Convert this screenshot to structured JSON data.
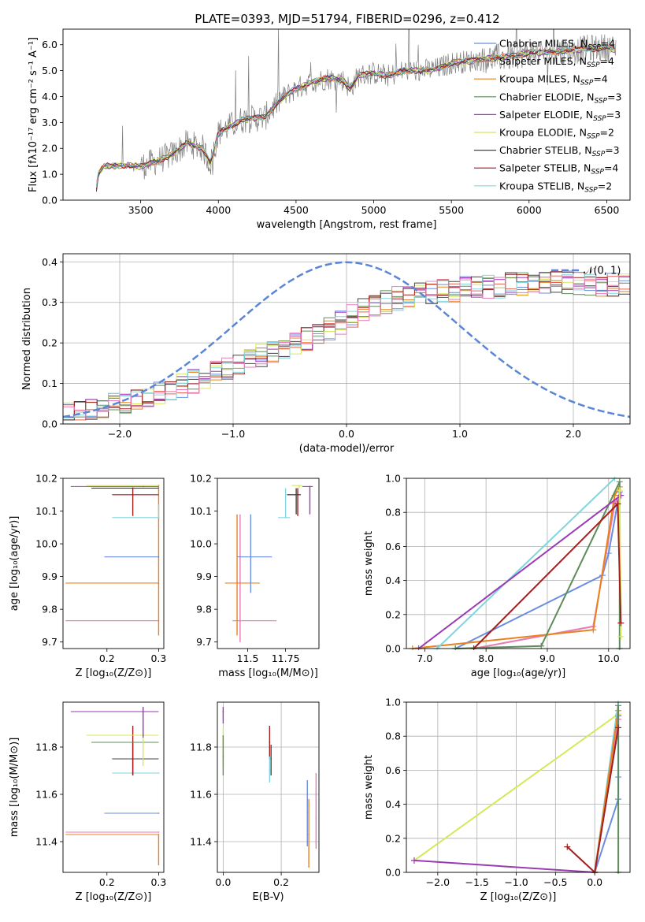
{
  "figure_title": "PLATE=0393, MJD=51794, FIBERID=0296, z=0.412",
  "colors": {
    "chabrier_miles": "#6a8ee0",
    "salpeter_miles": "#e8604c",
    "kroupa_miles": "#e8821e",
    "chabrier_elodie": "#5e8c5a",
    "salpeter_elodie": "#9a3ab4",
    "kroupa_elodie": "#d6e85a",
    "chabrier_stelib": "#444444",
    "salpeter_stelib": "#a01e1e",
    "kroupa_stelib": "#7ed6de",
    "pink": "#e87ab8",
    "observed_spectrum": "#7f7f7f",
    "normal_curve": "#5b86d8",
    "grid": "#b0b0b0"
  },
  "chart_data": [
    {
      "id": "spectrum",
      "type": "line",
      "title": "PLATE=0393, MJD=51794, FIBERID=0296, z=0.412",
      "xlabel": "wavelength [Angstrom, rest frame]",
      "ylabel": "Flux [fλ10⁻¹⁷ erg cm⁻² s⁻¹ A⁻¹]",
      "xlim": [
        3000,
        6650
      ],
      "ylim": [
        0,
        6.6
      ],
      "xticks": [
        3500,
        4000,
        4500,
        5000,
        5500,
        6000,
        6500
      ],
      "yticks": [
        0,
        1,
        2,
        3,
        4,
        5,
        6
      ],
      "grid": false,
      "legend_position": "top-right",
      "legend": [
        {
          "name": "Chabrier MILES, N",
          "sub": "SSP",
          "tail": "=4",
          "color": "#6a8ee0"
        },
        {
          "name": "Salpeter MILES, N",
          "sub": "SSP",
          "tail": "=4",
          "color": "#e8604c"
        },
        {
          "name": "Kroupa MILES, N",
          "sub": "SSP",
          "tail": "=4",
          "color": "#e8821e"
        },
        {
          "name": "Chabrier ELODIE, N",
          "sub": "SSP",
          "tail": "=3",
          "color": "#5e8c5a"
        },
        {
          "name": "Salpeter ELODIE, N",
          "sub": "SSP",
          "tail": "=3",
          "color": "#9a3ab4"
        },
        {
          "name": "Kroupa ELODIE, N",
          "sub": "SSP",
          "tail": "=2",
          "color": "#d6e85a"
        },
        {
          "name": "Chabrier STELIB, N",
          "sub": "SSP",
          "tail": "=3",
          "color": "#444444"
        },
        {
          "name": "Salpeter STELIB, N",
          "sub": "SSP",
          "tail": "=4",
          "color": "#a01e1e"
        },
        {
          "name": "Kroupa STELIB, N",
          "sub": "SSP",
          "tail": "=2",
          "color": "#7ed6de"
        }
      ],
      "continuum_points": [
        [
          3210,
          0.0
        ],
        [
          3220,
          0.9
        ],
        [
          3260,
          1.3
        ],
        [
          3400,
          1.35
        ],
        [
          3500,
          1.3
        ],
        [
          3600,
          1.5
        ],
        [
          3700,
          1.75
        ],
        [
          3800,
          2.2
        ],
        [
          3900,
          2.0
        ],
        [
          3950,
          1.4
        ],
        [
          4000,
          2.6
        ],
        [
          4150,
          3.1
        ],
        [
          4300,
          3.2
        ],
        [
          4400,
          3.9
        ],
        [
          4500,
          4.3
        ],
        [
          4600,
          4.55
        ],
        [
          4700,
          4.7
        ],
        [
          4800,
          4.65
        ],
        [
          4850,
          4.3
        ],
        [
          4900,
          4.8
        ],
        [
          5000,
          4.9
        ],
        [
          5100,
          4.8
        ],
        [
          5200,
          5.0
        ],
        [
          5300,
          5.0
        ],
        [
          5400,
          5.05
        ],
        [
          5500,
          5.3
        ],
        [
          5600,
          5.35
        ],
        [
          5700,
          5.45
        ],
        [
          5800,
          5.5
        ],
        [
          5900,
          5.55
        ],
        [
          6000,
          5.7
        ],
        [
          6100,
          5.7
        ],
        [
          6200,
          5.75
        ],
        [
          6300,
          5.8
        ],
        [
          6400,
          5.85
        ],
        [
          6500,
          5.9
        ],
        [
          6560,
          5.8
        ]
      ]
    },
    {
      "id": "residual-histogram",
      "type": "histogram",
      "xlabel": "(data-model)/error",
      "ylabel": "Normed distribution",
      "xlim": [
        -2.5,
        2.5
      ],
      "ylim": [
        0,
        0.42
      ],
      "xticks": [
        -2,
        -1,
        0,
        1,
        2
      ],
      "yticks": [
        0.0,
        0.1,
        0.2,
        0.3,
        0.4
      ],
      "grid": true,
      "legend_position": "top-right",
      "legend": [
        {
          "name": "𝒩(0, 1)",
          "style": "dashed",
          "color": "#5b86d8"
        }
      ],
      "bin_width": 0.1,
      "bin_start": -2.5,
      "mean_profile": [
        0.025,
        0.028,
        0.033,
        0.04,
        0.048,
        0.055,
        0.062,
        0.07,
        0.078,
        0.085,
        0.095,
        0.105,
        0.115,
        0.125,
        0.14,
        0.15,
        0.16,
        0.17,
        0.18,
        0.19,
        0.2,
        0.21,
        0.22,
        0.235,
        0.25,
        0.265,
        0.28,
        0.29,
        0.3,
        0.31,
        0.315,
        0.32,
        0.325,
        0.33,
        0.33,
        0.335,
        0.335,
        0.34,
        0.34,
        0.345,
        0.345,
        0.35,
        0.35,
        0.35,
        0.35,
        0.345,
        0.34,
        0.34,
        0.345,
        0.35,
        0.35,
        0.345,
        0.34,
        0.335,
        0.33,
        0.32,
        0.31,
        0.3,
        0.29,
        0.28,
        0.27,
        0.26,
        0.25,
        0.235,
        0.22,
        0.21,
        0.2,
        0.19,
        0.175,
        0.165,
        0.155,
        0.145,
        0.135,
        0.125,
        0.115,
        0.105,
        0.095,
        0.085,
        0.075,
        0.068,
        0.06,
        0.055,
        0.05,
        0.045,
        0.04,
        0.035,
        0.032,
        0.03,
        0.028,
        0.026
      ]
    },
    {
      "id": "age-vs-Z",
      "type": "errorbar",
      "xlabel": "Z [log₁₀(Z/Z⊙)]",
      "ylabel": "age  [log₁₀(age/yr)]",
      "xlim": [
        0.115,
        0.31
      ],
      "ylim": [
        9.68,
        10.2
      ],
      "xticks": [
        0.2,
        0.3
      ],
      "yticks": [
        9.7,
        9.8,
        9.9,
        10.0,
        10.1,
        10.2
      ],
      "grid": false,
      "points": [
        {
          "color": "#e87ab8",
          "x": 0.3,
          "y": 9.765,
          "xlo": 0.12,
          "xhi": 0.3,
          "ylo": 9.765,
          "yhi": 9.765
        },
        {
          "color": "#e8821e",
          "x": 0.3,
          "y": 9.88,
          "xlo": 0.12,
          "xhi": 0.3,
          "ylo": 9.72,
          "yhi": 10.18
        },
        {
          "color": "#6a8ee0",
          "x": 0.3,
          "y": 9.96,
          "xlo": 0.195,
          "xhi": 0.3,
          "ylo": 9.96,
          "yhi": 9.96
        },
        {
          "color": "#7ed6de",
          "x": 0.3,
          "y": 10.08,
          "xlo": 0.21,
          "xhi": 0.3,
          "ylo": 10.08,
          "yhi": 10.12
        },
        {
          "color": "#a01e1e",
          "x": 0.25,
          "y": 10.15,
          "xlo": 0.21,
          "xhi": 0.3,
          "ylo": 10.085,
          "yhi": 10.172
        },
        {
          "color": "#444444",
          "x": 0.25,
          "y": 10.17,
          "xlo": 0.17,
          "xhi": 0.3,
          "ylo": 10.17,
          "yhi": 10.17
        },
        {
          "color": "#9a3ab4",
          "x": 0.27,
          "y": 10.175,
          "xlo": 0.13,
          "xhi": 0.3,
          "ylo": 10.175,
          "yhi": 10.175
        },
        {
          "color": "#d6e85a",
          "x": 0.27,
          "y": 10.178,
          "xlo": 0.16,
          "xhi": 0.3,
          "ylo": 10.178,
          "yhi": 10.178
        }
      ]
    },
    {
      "id": "age-vs-mass",
      "type": "errorbar",
      "xlabel": "mass [log₁₀(M/M⊙)]",
      "ylabel": "",
      "xlim": [
        11.3,
        11.97
      ],
      "ylim": [
        9.68,
        10.2
      ],
      "xticks": [
        11.5,
        11.75
      ],
      "yticks": [
        9.7,
        9.8,
        9.9,
        10.0,
        10.1,
        10.2
      ],
      "grid": false,
      "points": [
        {
          "color": "#e87ab8",
          "x": 11.45,
          "y": 9.765,
          "xlo": 11.4,
          "xhi": 11.69,
          "ylo": 9.7,
          "yhi": 10.09
        },
        {
          "color": "#e8821e",
          "x": 11.43,
          "y": 9.88,
          "xlo": 11.35,
          "xhi": 11.58,
          "ylo": 9.72,
          "yhi": 10.09
        },
        {
          "color": "#6a8ee0",
          "x": 11.52,
          "y": 9.96,
          "xlo": 11.43,
          "xhi": 11.66,
          "ylo": 9.85,
          "yhi": 10.09
        },
        {
          "color": "#7ed6de",
          "x": 11.75,
          "y": 10.08,
          "xlo": 11.7,
          "xhi": 11.78,
          "ylo": 10.08,
          "yhi": 10.17
        },
        {
          "color": "#a01e1e",
          "x": 11.83,
          "y": 10.15,
          "xlo": 11.76,
          "xhi": 11.85,
          "ylo": 10.085,
          "yhi": 10.17
        },
        {
          "color": "#444444",
          "x": 11.82,
          "y": 10.15,
          "xlo": 11.76,
          "xhi": 11.85,
          "ylo": 10.09,
          "yhi": 10.17
        },
        {
          "color": "#9a3ab4",
          "x": 11.91,
          "y": 10.175,
          "xlo": 11.86,
          "xhi": 11.93,
          "ylo": 10.09,
          "yhi": 10.175
        },
        {
          "color": "#d6e85a",
          "x": 11.84,
          "y": 10.178,
          "xlo": 11.79,
          "xhi": 11.86,
          "ylo": 10.17,
          "yhi": 10.178
        }
      ]
    },
    {
      "id": "mass-weight-vs-age",
      "type": "line",
      "xlabel": "age  [log₁₀(age/yr)]",
      "ylabel": "mass weight",
      "xlim": [
        6.7,
        10.35
      ],
      "ylim": [
        0,
        1.0
      ],
      "xticks": [
        7,
        8,
        9,
        10
      ],
      "yticks": [
        0.0,
        0.2,
        0.4,
        0.6,
        0.8,
        1.0
      ],
      "grid": true,
      "series": [
        {
          "color": "#6a8ee0",
          "x": [
            7.5,
            9.9,
            10.0,
            10.18
          ],
          "y": [
            0.0,
            0.43,
            0.56,
            0.92
          ]
        },
        {
          "color": "#e87ab8",
          "x": [
            7.8,
            9.75,
            10.1,
            10.18
          ],
          "y": [
            0.0,
            0.13,
            0.85,
            0.9
          ]
        },
        {
          "color": "#e8821e",
          "x": [
            6.8,
            9.75,
            10.1,
            10.18
          ],
          "y": [
            0.0,
            0.11,
            0.9,
            0.95
          ]
        },
        {
          "color": "#7ed6de",
          "x": [
            7.2,
            10.1
          ],
          "y": [
            0.0,
            1.0
          ]
        },
        {
          "color": "#5e8c5a",
          "x": [
            7.5,
            8.9,
            10.18,
            10.18
          ],
          "y": [
            0.0,
            0.015,
            0.98,
            0.0
          ]
        },
        {
          "color": "#9a3ab4",
          "x": [
            6.9,
            10.2
          ],
          "y": [
            0.0,
            0.9
          ]
        },
        {
          "color": "#d6e85a",
          "x": [
            10.18,
            10.2
          ],
          "y": [
            0.93,
            0.07
          ]
        },
        {
          "color": "#a01e1e",
          "x": [
            7.8,
            10.15,
            10.2
          ],
          "y": [
            0.0,
            0.85,
            0.15
          ]
        }
      ]
    },
    {
      "id": "mass-vs-Z",
      "type": "errorbar",
      "xlabel": "Z [log₁₀(Z/Z⊙)]",
      "ylabel": "mass [log₁₀(M/M⊙)]",
      "xlim": [
        0.115,
        0.31
      ],
      "ylim": [
        11.27,
        11.99
      ],
      "xticks": [
        0.2,
        0.3
      ],
      "yticks": [
        11.4,
        11.6,
        11.8
      ],
      "grid": false,
      "points": [
        {
          "color": "#e8821e",
          "x": 0.3,
          "y": 11.43,
          "xlo": 0.12,
          "xhi": 0.3,
          "ylo": 11.3,
          "yhi": 11.43
        },
        {
          "color": "#e87ab8",
          "x": 0.3,
          "y": 11.44,
          "xlo": 0.12,
          "xhi": 0.3,
          "ylo": 11.44,
          "yhi": 11.44
        },
        {
          "color": "#6a8ee0",
          "x": 0.3,
          "y": 11.52,
          "xlo": 0.195,
          "xhi": 0.3,
          "ylo": 11.52,
          "yhi": 11.52
        },
        {
          "color": "#7ed6de",
          "x": 0.3,
          "y": 11.69,
          "xlo": 0.21,
          "xhi": 0.3,
          "ylo": 11.69,
          "yhi": 11.69
        },
        {
          "color": "#444444",
          "x": 0.25,
          "y": 11.75,
          "xlo": 0.21,
          "xhi": 0.3,
          "ylo": 11.68,
          "yhi": 11.82
        },
        {
          "color": "#a01e1e",
          "x": 0.25,
          "y": 11.82,
          "xlo": 0.21,
          "xhi": 0.3,
          "ylo": 11.68,
          "yhi": 11.89
        },
        {
          "color": "#5e8c5a",
          "x": 0.27,
          "y": 11.82,
          "xlo": 0.17,
          "xhi": 0.3,
          "ylo": 11.82,
          "yhi": 11.82
        },
        {
          "color": "#d6e85a",
          "x": 0.27,
          "y": 11.85,
          "xlo": 0.16,
          "xhi": 0.3,
          "ylo": 11.72,
          "yhi": 11.89
        },
        {
          "color": "#9a3ab4",
          "x": 0.27,
          "y": 11.95,
          "xlo": 0.13,
          "xhi": 0.3,
          "ylo": 11.84,
          "yhi": 11.97
        }
      ]
    },
    {
      "id": "mass-vs-ebv",
      "type": "errorbar",
      "xlabel": "E(B-V)",
      "ylabel": "",
      "xlim": [
        -0.02,
        0.33
      ],
      "ylim": [
        11.27,
        11.99
      ],
      "xticks": [
        0.0,
        0.2
      ],
      "yticks": [
        11.4,
        11.6,
        11.8
      ],
      "grid": true,
      "points": [
        {
          "color": "#9a3ab4",
          "x": 0.0,
          "y": 11.95,
          "xlo": 0.0,
          "xhi": 0.0,
          "ylo": 11.9,
          "yhi": 11.97
        },
        {
          "color": "#d6e85a",
          "x": 0.0,
          "y": 11.8,
          "xlo": 0.0,
          "xhi": 0.0,
          "ylo": 11.72,
          "yhi": 11.88
        },
        {
          "color": "#5e8c5a",
          "x": 0.0,
          "y": 11.76,
          "xlo": 0.0,
          "xhi": 0.0,
          "ylo": 11.68,
          "yhi": 11.85
        },
        {
          "color": "#a01e1e",
          "x": 0.16,
          "y": 11.82,
          "xlo": 0.16,
          "xhi": 0.16,
          "ylo": 11.75,
          "yhi": 11.89
        },
        {
          "color": "#444444",
          "x": 0.165,
          "y": 11.75,
          "xlo": 0.165,
          "xhi": 0.165,
          "ylo": 11.68,
          "yhi": 11.81
        },
        {
          "color": "#7ed6de",
          "x": 0.16,
          "y": 11.7,
          "xlo": 0.16,
          "xhi": 0.16,
          "ylo": 11.65,
          "yhi": 11.76
        },
        {
          "color": "#6a8ee0",
          "x": 0.29,
          "y": 11.52,
          "xlo": 0.29,
          "xhi": 0.29,
          "ylo": 11.38,
          "yhi": 11.66
        },
        {
          "color": "#e8821e",
          "x": 0.295,
          "y": 11.43,
          "xlo": 0.295,
          "xhi": 0.295,
          "ylo": 11.29,
          "yhi": 11.58
        },
        {
          "color": "#e87ab8",
          "x": 0.32,
          "y": 11.5,
          "xlo": 0.32,
          "xhi": 0.32,
          "ylo": 11.37,
          "yhi": 11.69
        }
      ]
    },
    {
      "id": "mass-weight-vs-Z",
      "type": "line",
      "xlabel": "Z [log₁₀(Z/Z⊙)]",
      "ylabel": "mass weight",
      "xlim": [
        -2.4,
        0.45
      ],
      "ylim": [
        0,
        1.0
      ],
      "xticks": [
        -2.0,
        -1.5,
        -1.0,
        -0.5,
        0.0
      ],
      "yticks": [
        0.0,
        0.2,
        0.4,
        0.6,
        0.8,
        1.0
      ],
      "grid": true,
      "series": [
        {
          "color": "#d6e85a",
          "x": [
            -2.3,
            0.3
          ],
          "y": [
            0.07,
            0.93
          ]
        },
        {
          "color": "#9a3ab4",
          "x": [
            -2.3,
            0.0,
            0.3
          ],
          "y": [
            0.07,
            0.0,
            0.92
          ]
        },
        {
          "color": "#6a8ee0",
          "x": [
            0.0,
            0.3,
            0.3,
            0.3
          ],
          "y": [
            0.0,
            0.43,
            0.56,
            0.92
          ]
        },
        {
          "color": "#7ed6de",
          "x": [
            0.0,
            0.3
          ],
          "y": [
            0.0,
            1.0
          ]
        },
        {
          "color": "#e87ab8",
          "x": [
            0.0,
            0.3
          ],
          "y": [
            0.0,
            0.9
          ]
        },
        {
          "color": "#e8821e",
          "x": [
            0.0,
            0.3
          ],
          "y": [
            0.0,
            0.95
          ]
        },
        {
          "color": "#5e8c5a",
          "x": [
            0.3,
            0.3
          ],
          "y": [
            0.0,
            0.98
          ]
        },
        {
          "color": "#a01e1e",
          "x": [
            -0.35,
            0.0,
            0.3
          ],
          "y": [
            0.15,
            0.0,
            0.85
          ]
        }
      ]
    }
  ]
}
